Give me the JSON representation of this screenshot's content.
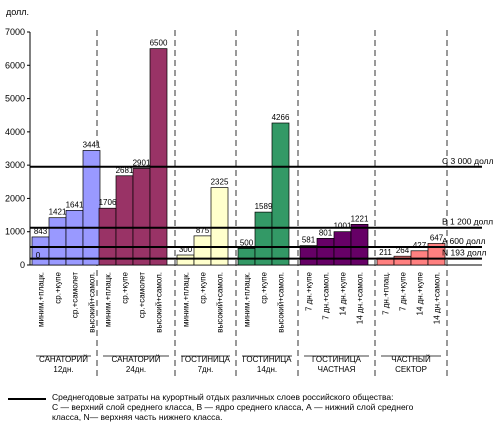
{
  "chart_data": {
    "type": "bar",
    "ylabel": "долл.",
    "ylim": [
      0,
      7000
    ],
    "yticks": [
      0,
      1000,
      2000,
      3000,
      4000,
      5000,
      6000,
      7000
    ],
    "grid": false,
    "groups": [
      {
        "label_lines": [
          "САНАТОРИЙ",
          "12дн."
        ],
        "color": "#9999ff",
        "categories": [
          "миним.+плацк.",
          "ср.+купе",
          "ср.+самолет",
          "высокий+самол."
        ],
        "values": [
          843,
          1421,
          1641,
          3441
        ],
        "value_labels": [
          "843",
          "1421",
          "1641",
          "3441"
        ]
      },
      {
        "label_lines": [
          "САНАТОРИЙ",
          "24дн."
        ],
        "color": "#993366",
        "categories": [
          "миним.+плацк.",
          "ср.+купе",
          "ср.+самолет",
          "высокий+самол."
        ],
        "values": [
          1706,
          2681,
          2901,
          6500
        ],
        "value_labels": [
          "1706",
          "2681",
          "2901",
          "6500"
        ]
      },
      {
        "label_lines": [
          "ГОСТИНИЦА",
          "7дн."
        ],
        "color": "#ffffcc",
        "categories": [
          "миним.+плацк.",
          "ср.+купе",
          "высокий+самол."
        ],
        "values": [
          300,
          875,
          2325
        ],
        "value_labels": [
          "300",
          "875",
          "2325"
        ]
      },
      {
        "label_lines": [
          "ГОСТИНИЦА",
          "14дн."
        ],
        "color": "#339966",
        "categories": [
          "миним.+плацк.",
          "ср.+купе",
          "высокий+самол."
        ],
        "values": [
          500,
          1589,
          4266
        ],
        "value_labels": [
          "500",
          "1589",
          "4266"
        ]
      },
      {
        "label_lines": [
          "ГОСТИНИЦА",
          "ЧАСТНАЯ"
        ],
        "color": "#660066",
        "categories": [
          "7 дн.+купе",
          "7 дн.+самол.",
          "14 дн.+купе",
          "14 дн.+самол."
        ],
        "values": [
          581,
          801,
          1001,
          1221
        ],
        "value_labels": [
          "581",
          "801",
          "1001",
          "1221"
        ]
      },
      {
        "label_lines": [
          "ЧАСТНЫЙ",
          "СЕКТОР"
        ],
        "color": "#ff8080",
        "categories": [
          "7 дн.+плац.",
          "7 дн.+купе",
          "14 дн.+купе",
          "14 дн.+самол."
        ],
        "values": [
          211,
          264,
          427,
          647
        ],
        "value_labels": [
          "211",
          "264",
          "427",
          "647"
        ]
      }
    ],
    "reference_lines": [
      {
        "label": "C 3 000 долл",
        "value": 2950
      },
      {
        "label": "B 1 200 долл",
        "value": 1120
      },
      {
        "label": "A 600 долл",
        "value": 540
      },
      {
        "label": "N 193 долл",
        "value": 193
      }
    ],
    "group1_extra_label": "0"
  },
  "legend": {
    "lines": [
      "Среднегодовые затраты на курортный отдых различных слоев российского общества:",
      "С — верхний слой среднего класса, В — ядро среднего класса, А — нижний слой среднего",
      "класса, N— верхняя часть нижнего класса."
    ]
  }
}
